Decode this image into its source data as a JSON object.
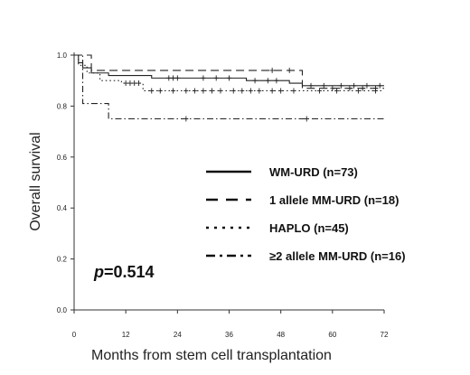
{
  "chart_data": {
    "type": "line",
    "subtype": "kaplan-meier",
    "title": "",
    "xlabel": "Months from stem cell transplantation",
    "ylabel": "Overall survival",
    "xlim": [
      0,
      72
    ],
    "ylim": [
      0,
      1.0
    ],
    "xticks": [
      0,
      12,
      24,
      36,
      48,
      60,
      72
    ],
    "yticks": [
      0.0,
      0.2,
      0.4,
      0.6,
      0.8,
      1.0
    ],
    "xtick_labels": [
      "0",
      "12",
      "24",
      "36",
      "48",
      "60",
      "72"
    ],
    "ytick_labels": [
      "0.0",
      "0.2",
      "0.4",
      "0.6",
      "0.8",
      "1.0"
    ],
    "grid": false,
    "legend_position": "center-right",
    "annotation": {
      "p_label": "p",
      "p_value": "=0.514"
    },
    "series": [
      {
        "name": "WM-URD (n=73)",
        "style": "solid",
        "steps": [
          [
            0,
            1.0
          ],
          [
            1,
            0.97
          ],
          [
            2,
            0.95
          ],
          [
            4,
            0.93
          ],
          [
            8,
            0.92
          ],
          [
            18,
            0.91
          ],
          [
            40,
            0.9
          ],
          [
            50,
            0.89
          ],
          [
            53,
            0.88
          ],
          [
            72,
            0.88
          ]
        ],
        "censors": [
          [
            22,
            0.91
          ],
          [
            23,
            0.91
          ],
          [
            24,
            0.91
          ],
          [
            30,
            0.91
          ],
          [
            33,
            0.91
          ],
          [
            36,
            0.91
          ],
          [
            42,
            0.9
          ],
          [
            45,
            0.9
          ],
          [
            47,
            0.9
          ],
          [
            55,
            0.88
          ],
          [
            58,
            0.88
          ],
          [
            62,
            0.88
          ],
          [
            65,
            0.88
          ],
          [
            68,
            0.88
          ],
          [
            71,
            0.88
          ]
        ]
      },
      {
        "name": "1 allele MM-URD (n=18)",
        "style": "dashed",
        "steps": [
          [
            0,
            1.0
          ],
          [
            4,
            0.94
          ],
          [
            48,
            0.94
          ],
          [
            53,
            0.87
          ],
          [
            72,
            0.87
          ]
        ],
        "censors": [
          [
            46,
            0.94
          ],
          [
            50,
            0.94
          ],
          [
            60,
            0.87
          ],
          [
            64,
            0.87
          ],
          [
            67,
            0.87
          ],
          [
            70,
            0.87
          ]
        ]
      },
      {
        "name": "HAPLO (n=45)",
        "style": "dotted",
        "steps": [
          [
            0,
            1.0
          ],
          [
            1,
            0.96
          ],
          [
            3,
            0.93
          ],
          [
            6,
            0.9
          ],
          [
            11,
            0.89
          ],
          [
            16,
            0.86
          ],
          [
            72,
            0.86
          ]
        ],
        "censors": [
          [
            12,
            0.89
          ],
          [
            13,
            0.89
          ],
          [
            14,
            0.89
          ],
          [
            15,
            0.89
          ],
          [
            18,
            0.86
          ],
          [
            20,
            0.86
          ],
          [
            23,
            0.86
          ],
          [
            26,
            0.86
          ],
          [
            28,
            0.86
          ],
          [
            30,
            0.86
          ],
          [
            32,
            0.86
          ],
          [
            34,
            0.86
          ],
          [
            37,
            0.86
          ],
          [
            39,
            0.86
          ],
          [
            41,
            0.86
          ],
          [
            43,
            0.86
          ],
          [
            46,
            0.86
          ],
          [
            48,
            0.86
          ],
          [
            51,
            0.86
          ],
          [
            57,
            0.86
          ],
          [
            61,
            0.86
          ],
          [
            66,
            0.86
          ],
          [
            70,
            0.86
          ]
        ]
      },
      {
        "name": "≥2 allele MM-URD (n=16)",
        "style": "dashdot",
        "steps": [
          [
            0,
            1.0
          ],
          [
            2,
            0.81
          ],
          [
            8,
            0.75
          ],
          [
            72,
            0.75
          ]
        ],
        "censors": [
          [
            26,
            0.75
          ],
          [
            54,
            0.75
          ]
        ]
      }
    ]
  }
}
